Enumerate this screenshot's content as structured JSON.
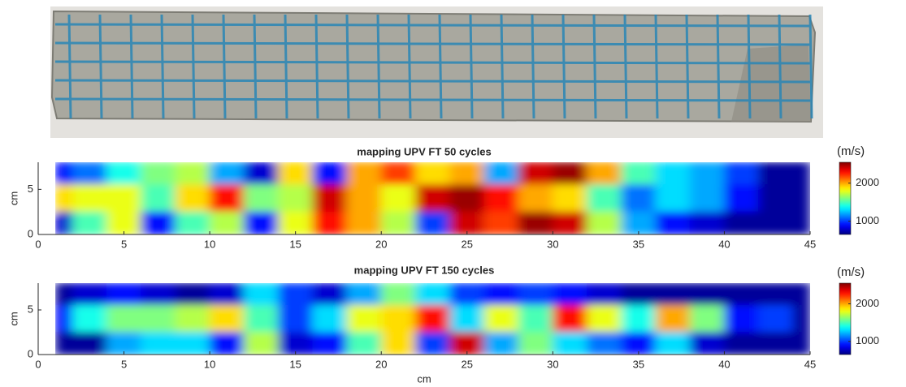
{
  "chart_data": [
    {
      "type": "heatmap",
      "title": "mapping UPV FT 50 cycles",
      "y_label": "cm",
      "colorbar_label": "(m/s)",
      "colormap": "jet",
      "x": [
        1,
        3,
        5,
        7,
        9,
        11,
        13,
        15,
        17,
        19,
        21,
        23,
        25,
        27,
        29,
        31,
        33,
        35,
        37,
        39,
        41,
        43,
        45
      ],
      "y": [
        7,
        4,
        1
      ],
      "z": [
        [
          900,
          1100,
          1400,
          1600,
          1700,
          1200,
          800,
          1900,
          900,
          2000,
          2200,
          1900,
          2000,
          1200,
          2400,
          2500,
          2000,
          1500,
          1300,
          1200,
          1000,
          700,
          700
        ],
        [
          1900,
          1800,
          1800,
          1500,
          1900,
          2300,
          1600,
          1700,
          2400,
          2000,
          1800,
          2400,
          2500,
          2300,
          2000,
          1900,
          1500,
          1100,
          1300,
          1200,
          900,
          700,
          700
        ],
        [
          800,
          1500,
          1800,
          900,
          1500,
          1700,
          900,
          1800,
          2300,
          2000,
          1700,
          1000,
          2400,
          2200,
          2500,
          2400,
          1700,
          1200,
          900,
          800,
          700,
          700,
          700
        ]
      ],
      "xlim": [
        0,
        45
      ],
      "xticks": [
        0,
        5,
        10,
        15,
        20,
        25,
        30,
        35,
        40,
        45
      ],
      "ylim": [
        0,
        8
      ],
      "yticks": [
        0,
        5
      ],
      "clim": [
        650,
        2550
      ],
      "cticks": [
        1000,
        2000
      ]
    },
    {
      "type": "heatmap",
      "title": "mapping UPV FT 150 cycles",
      "x_label": "cm",
      "y_label": "cm",
      "colorbar_label": "(m/s)",
      "colormap": "jet",
      "x": [
        1,
        3,
        5,
        7,
        9,
        11,
        13,
        15,
        17,
        19,
        21,
        23,
        25,
        27,
        29,
        31,
        33,
        35,
        37,
        39,
        41,
        43,
        45
      ],
      "y": [
        7,
        4,
        1
      ],
      "z": [
        [
          700,
          800,
          900,
          800,
          700,
          800,
          1300,
          1000,
          800,
          1200,
          1600,
          1300,
          1000,
          900,
          1000,
          900,
          800,
          700,
          700,
          700,
          700,
          700,
          700
        ],
        [
          900,
          1400,
          1600,
          1600,
          1700,
          1900,
          1500,
          1000,
          1300,
          1800,
          1900,
          2300,
          1300,
          1800,
          1500,
          2300,
          1800,
          1400,
          2000,
          1600,
          900,
          1000,
          700
        ],
        [
          700,
          700,
          1200,
          1300,
          1300,
          900,
          1700,
          800,
          900,
          1500,
          1900,
          1000,
          2400,
          1200,
          1600,
          1300,
          1100,
          900,
          1300,
          800,
          700,
          700,
          700
        ]
      ],
      "xlim": [
        0,
        45
      ],
      "xticks": [
        0,
        5,
        10,
        15,
        20,
        25,
        30,
        35,
        40,
        45
      ],
      "ylim": [
        0,
        8
      ],
      "yticks": [
        0,
        5
      ],
      "clim": [
        650,
        2550
      ],
      "cticks": [
        1000,
        2000
      ]
    }
  ]
}
